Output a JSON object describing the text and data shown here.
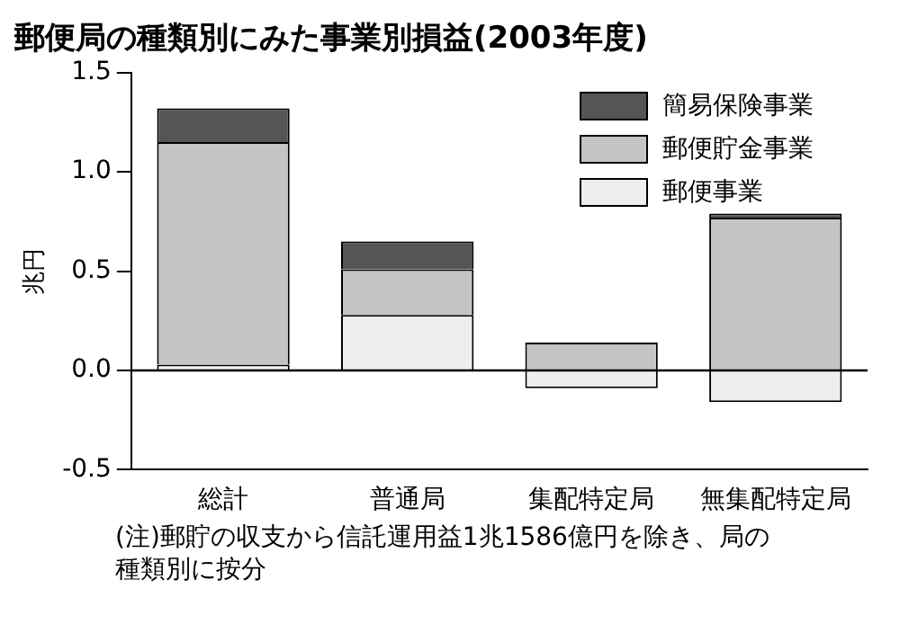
{
  "chart_data": {
    "type": "bar",
    "title": "郵便局の種類別にみた事業別損益(2003年度)",
    "ylabel": "兆円",
    "categories": [
      "総計",
      "普通局",
      "集配特定局",
      "無集配特定局"
    ],
    "stacked": true,
    "series": [
      {
        "name": "郵便事業",
        "color": "#eeeeee",
        "values": [
          0.03,
          0.28,
          -0.09,
          -0.16
        ]
      },
      {
        "name": "郵便貯金事業",
        "color": "#c4c4c4",
        "values": [
          1.12,
          0.23,
          0.14,
          0.77
        ]
      },
      {
        "name": "簡易保険事業",
        "color": "#555555",
        "values": [
          0.17,
          0.14,
          0,
          0.02
        ]
      }
    ],
    "ylim": [
      -0.5,
      1.5
    ],
    "yticks": [
      {
        "value": -0.5,
        "label": "-0.5"
      },
      {
        "value": 0,
        "label": "0.0"
      },
      {
        "value": 0.5,
        "label": "0.5"
      },
      {
        "value": 1,
        "label": "1.0"
      },
      {
        "value": 1.5,
        "label": "1.5"
      }
    ],
    "ref_lines": [
      {
        "axis": "y",
        "value": 0
      }
    ],
    "grid": false,
    "legend": "top right",
    "annotations": [
      "(注)郵貯の収支から信託運用益1兆1586億円を除き、局の種類別に按分"
    ]
  }
}
